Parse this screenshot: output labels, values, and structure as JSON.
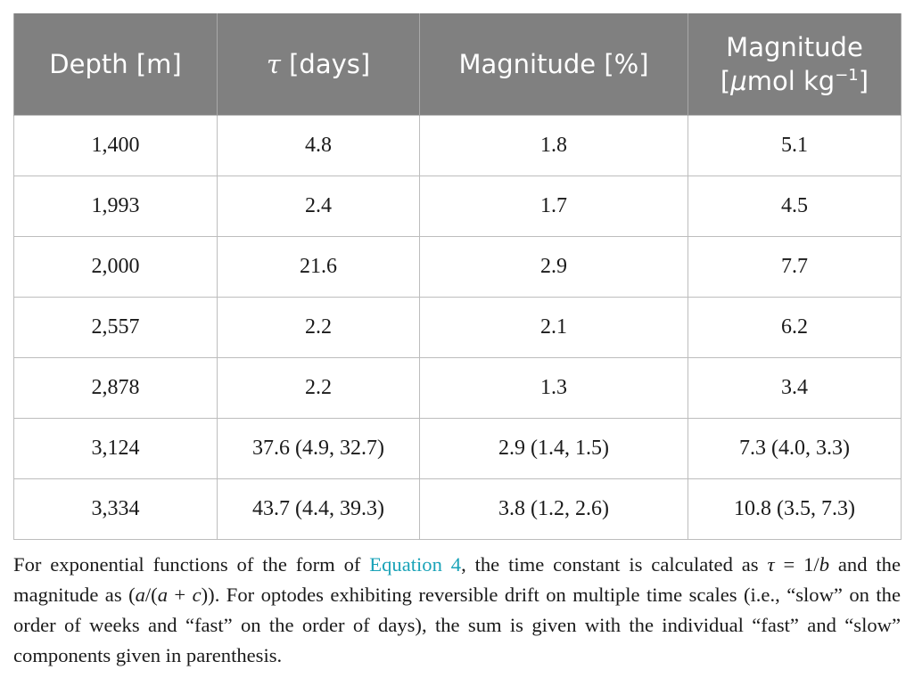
{
  "table": {
    "headers": {
      "depth": "Depth [m]",
      "tau_symbol": "τ",
      "tau_unit": " [days]",
      "magnitude_pct": "Magnitude [%]",
      "magnitude_umol_line1": "Magnitude",
      "magnitude_umol_open": "[",
      "magnitude_umol_mu": "μ",
      "magnitude_umol_unit": "mol kg",
      "magnitude_umol_exp": "−1",
      "magnitude_umol_close": "]"
    },
    "rows": [
      {
        "depth": "1,400",
        "tau": "4.8",
        "magnitude_pct": "1.8",
        "magnitude_umol": "5.1"
      },
      {
        "depth": "1,993",
        "tau": "2.4",
        "magnitude_pct": "1.7",
        "magnitude_umol": "4.5"
      },
      {
        "depth": "2,000",
        "tau": "21.6",
        "magnitude_pct": "2.9",
        "magnitude_umol": "7.7"
      },
      {
        "depth": "2,557",
        "tau": "2.2",
        "magnitude_pct": "2.1",
        "magnitude_umol": "6.2"
      },
      {
        "depth": "2,878",
        "tau": "2.2",
        "magnitude_pct": "1.3",
        "magnitude_umol": "3.4"
      },
      {
        "depth": "3,124",
        "tau": "37.6 (4.9, 32.7)",
        "magnitude_pct": "2.9 (1.4, 1.5)",
        "magnitude_umol": "7.3 (4.0, 3.3)"
      },
      {
        "depth": "3,334",
        "tau": "43.7 (4.4, 39.3)",
        "magnitude_pct": "3.8 (1.2, 2.6)",
        "magnitude_umol": "10.8 (3.5, 7.3)"
      }
    ]
  },
  "footnote": {
    "part1": "For exponential functions of the form of ",
    "link": "Equation 4",
    "part2": ", the time constant is calculated as ",
    "tau": "τ",
    "eq": " = ",
    "one_over": "1/",
    "b": "b",
    "part3": " and the magnitude as (",
    "a1": "a",
    "slash_paren": "/(",
    "a2": "a",
    "plus": " + ",
    "c": "c",
    "part4": ")). For optodes exhibiting reversible drift on multiple time scales (i.e., “slow” on the order of weeks and “fast” on the order of days), the sum is given with the individual “fast” and “slow” components given in parenthesis."
  }
}
